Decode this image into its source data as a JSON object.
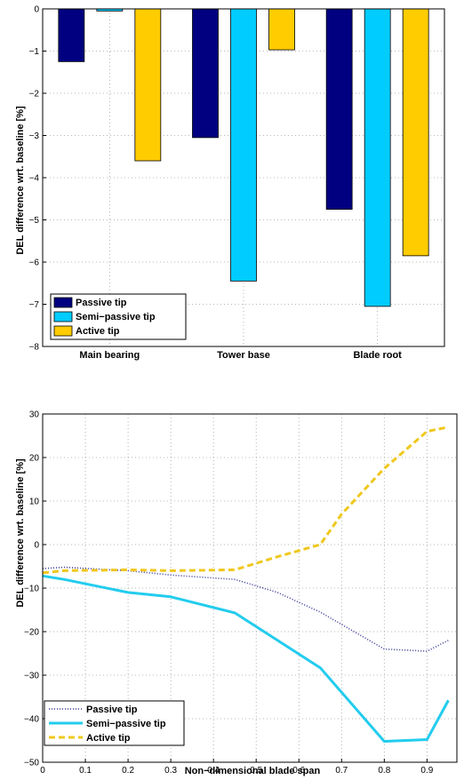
{
  "chart_data": [
    {
      "type": "bar",
      "title": "",
      "xlabel": "",
      "ylabel": "DEL difference wrt. baseline [%]",
      "ylim": [
        -8,
        0
      ],
      "yticks": [
        0,
        -1,
        -2,
        -3,
        -4,
        -5,
        -6,
        -7,
        -8
      ],
      "grid": true,
      "legend_position": "bottom-left",
      "categories": [
        "Main bearing",
        "Tower base",
        "Blade root"
      ],
      "series": [
        {
          "name": "Passive tip",
          "color": "#000080",
          "values": [
            -1.25,
            -3.05,
            -4.75
          ]
        },
        {
          "name": "Semi−passive tip",
          "color": "#00ccff",
          "values": [
            -0.05,
            -6.45,
            -7.05
          ]
        },
        {
          "name": "Active tip",
          "color": "#ffcc00",
          "values": [
            -3.6,
            -0.97,
            -5.85
          ]
        }
      ]
    },
    {
      "type": "line",
      "title": "",
      "xlabel": "Non−dimensional blade span",
      "ylabel": "DEL difference wrt. baseline [%]",
      "xlim": [
        0,
        0.97
      ],
      "ylim": [
        -50,
        30
      ],
      "xticks": [
        0,
        0.1,
        0.2,
        0.3,
        0.4,
        0.5,
        0.6,
        0.7,
        0.8,
        0.9
      ],
      "xtick_labels": [
        "0",
        "0.1",
        "0.2",
        "0.3",
        "0.4",
        "0.5",
        "0.6",
        "0.7",
        "0.8",
        "0.9"
      ],
      "yticks": [
        30,
        20,
        10,
        0,
        -10,
        -20,
        -30,
        -40,
        -50
      ],
      "grid": true,
      "legend_position": "bottom-left",
      "series": [
        {
          "name": "Passive tip",
          "color": "#3a3a9a",
          "style": "dotted",
          "x": [
            0,
            0.05,
            0.2,
            0.3,
            0.45,
            0.55,
            0.65,
            0.8,
            0.9,
            0.95
          ],
          "y": [
            -5.5,
            -5.2,
            -6,
            -7,
            -8,
            -11,
            -15.5,
            -24,
            -24.5,
            -22
          ]
        },
        {
          "name": "Semi−passive tip",
          "color": "#22ccee",
          "style": "solid",
          "x": [
            0,
            0.05,
            0.2,
            0.3,
            0.45,
            0.55,
            0.65,
            0.8,
            0.9,
            0.95
          ],
          "y": [
            -7.2,
            -8,
            -11,
            -12,
            -15.7,
            -22,
            -28.3,
            -45.2,
            -44.8,
            -35.8
          ]
        },
        {
          "name": "Active tip",
          "color": "#f0c81e",
          "style": "dashed",
          "x": [
            0,
            0.05,
            0.2,
            0.3,
            0.45,
            0.55,
            0.65,
            0.7,
            0.8,
            0.9,
            0.95
          ],
          "y": [
            -6.5,
            -6,
            -5.8,
            -6,
            -5.8,
            -2.8,
            0,
            7,
            17.5,
            26,
            27
          ]
        }
      ]
    }
  ]
}
